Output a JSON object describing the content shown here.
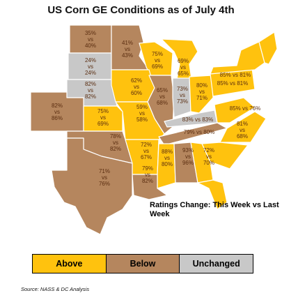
{
  "title": "US Corn GE Conditions as of July 4th",
  "note": "Ratings Change: This Week vs Last Week",
  "legend": {
    "above": "Above",
    "below": "Below",
    "unchanged": "Unchanged"
  },
  "colors": {
    "above": "#FFC20E",
    "below": "#B5865E",
    "unchanged": "#C8C8C8"
  },
  "source": "Source: NASS & DC Analysis",
  "states": [
    {
      "name": "MN",
      "status": "below",
      "text": [
        "41%",
        "vs",
        "43%"
      ]
    },
    {
      "name": "ND",
      "status": "below",
      "text": [
        "35%",
        "vs",
        "40%"
      ]
    },
    {
      "name": "SD",
      "status": "unchanged",
      "text": [
        "24%",
        "vs",
        "24%"
      ]
    },
    {
      "name": "NE",
      "status": "unchanged",
      "text": [
        "82%",
        "vs",
        "82%"
      ]
    },
    {
      "name": "WI",
      "status": "above",
      "text": [
        "75%",
        "vs",
        "69%"
      ]
    },
    {
      "name": "MI",
      "status": "above",
      "text": [
        "69%",
        "vs",
        "65%"
      ]
    },
    {
      "name": "NY",
      "status": "above",
      "text": [
        "85% vs 81%"
      ]
    },
    {
      "name": "IA",
      "status": "above",
      "text": [
        "62%",
        "vs",
        "60%"
      ]
    },
    {
      "name": "IL",
      "status": "below",
      "text": [
        "65%",
        "vs",
        "68%"
      ]
    },
    {
      "name": "IN",
      "status": "unchanged",
      "text": [
        "73%",
        "vs",
        "73%"
      ]
    },
    {
      "name": "OH",
      "status": "above",
      "text": [
        "80%",
        "vs",
        "71%"
      ]
    },
    {
      "name": "PA",
      "status": "above",
      "text": [
        "85% vs 81%"
      ]
    },
    {
      "name": "CO",
      "status": "below",
      "text": [
        "82%",
        "vs",
        "86%"
      ]
    },
    {
      "name": "KS",
      "status": "above",
      "text": [
        "75%",
        "vs",
        "69%"
      ]
    },
    {
      "name": "MO",
      "status": "above",
      "text": [
        "59%",
        "vs",
        "58%"
      ]
    },
    {
      "name": "KY",
      "status": "unchanged",
      "text": [
        "83% vs 83%"
      ]
    },
    {
      "name": "TN",
      "status": "below",
      "text": [
        "79% vs 80%"
      ]
    },
    {
      "name": "NC",
      "status": "above",
      "text": [
        "81%",
        "vs",
        "68%"
      ]
    },
    {
      "name": "VA",
      "status": "above",
      "text": [
        "85% vs 76%"
      ]
    },
    {
      "name": "OK",
      "status": "below",
      "text": [
        "78%",
        "vs",
        "82%"
      ]
    },
    {
      "name": "AR",
      "status": "above",
      "text": [
        "72%",
        "vs",
        "67%"
      ]
    },
    {
      "name": "MS",
      "status": "above",
      "text": [
        "88%",
        "vs",
        "80%"
      ]
    },
    {
      "name": "AL",
      "status": "below",
      "text": [
        "93%",
        "vs",
        "96%"
      ]
    },
    {
      "name": "SC",
      "status": "above",
      "text": [
        "72%",
        "vs",
        "70%"
      ]
    },
    {
      "name": "TX",
      "status": "below",
      "text": [
        "71%",
        "vs",
        "76%"
      ]
    },
    {
      "name": "LA",
      "status": "below",
      "text": [
        "79%",
        "vs",
        "82%"
      ]
    }
  ]
}
